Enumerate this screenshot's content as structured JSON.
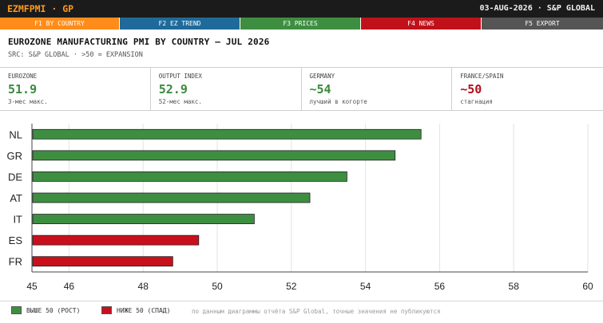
{
  "header": {
    "ticker": "EZMFPMI · GP",
    "date_source": "03-AUG-2026 · S&P GLOBAL"
  },
  "fkeys": [
    {
      "label": "F1 BY COUNTRY",
      "color": "#ff8c1a"
    },
    {
      "label": "F2 EZ TREND",
      "color": "#1f6a9a"
    },
    {
      "label": "F3 PRICES",
      "color": "#3e8e41"
    },
    {
      "label": "F4 NEWS",
      "color": "#c0111a"
    },
    {
      "label": "F5 EXPORT",
      "color": "#555555"
    }
  ],
  "panel": {
    "title": "EUROZONE MANUFACTURING PMI BY COUNTRY — JUL 2026",
    "subtitle": "SRC: S&P GLOBAL · >50 = EXPANSION"
  },
  "kpis": [
    {
      "label": "EUROZONE",
      "value": "51.9",
      "note": "3-мес макс.",
      "color": "#3a8a3e"
    },
    {
      "label": "OUTPUT INDEX",
      "value": "52.9",
      "note": "52-мес макс.",
      "color": "#3a8a3e"
    },
    {
      "label": "GERMANY",
      "value": "~54",
      "note": "лучший в когорте",
      "color": "#3a8a3e"
    },
    {
      "label": "FRANCE/SPAIN",
      "value": "~50",
      "note": "стагнация",
      "color": "#b0111a"
    }
  ],
  "colors": {
    "expansion": "#3e8e41",
    "contraction": "#c8101c"
  },
  "chart_data": {
    "type": "bar",
    "orientation": "horizontal",
    "categories": [
      "NL",
      "GR",
      "DE",
      "AT",
      "IT",
      "ES",
      "FR"
    ],
    "values": [
      55.5,
      54.8,
      53.5,
      52.5,
      51.0,
      49.5,
      48.8
    ],
    "xlim": [
      45,
      60
    ],
    "xticks": [
      "45",
      "46",
      "48",
      "50",
      "52",
      "54",
      "56",
      "58",
      "60"
    ],
    "grid": true,
    "threshold": 50
  },
  "legend": {
    "above": "ВЫШЕ 50 (РОСТ)",
    "below": "НИЖЕ 50 (СПАД)",
    "footnote": "по данным диаграммы отчёта S&P Global, точные значения не публикуются"
  }
}
